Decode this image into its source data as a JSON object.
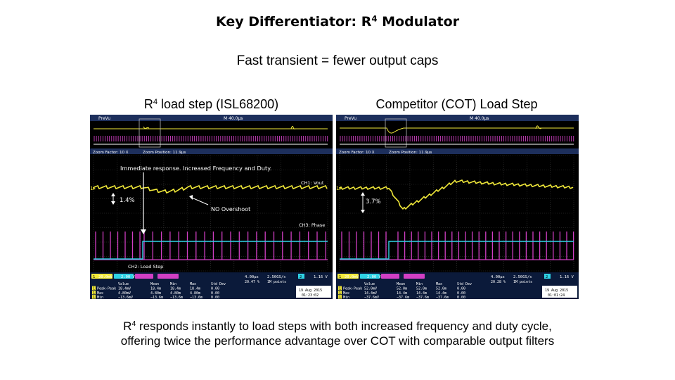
{
  "slide": {
    "title_main": "Key Differentiator: R",
    "title_sup": "4",
    "title_rest": " Modulator",
    "subtitle": "Fast transient = fewer output caps",
    "caption_line1_a": "R",
    "caption_line1_sup": "4",
    "caption_line1_b": " responds instantly to load steps with both increased frequency and duty cycle,",
    "caption_line2": "offering twice the performance advantage over COT with comparable output filters"
  },
  "left_panel": {
    "label_a": "R",
    "label_sup": "4",
    "label_b": " load step (ISL68200)",
    "top_bar_left": "PreVu",
    "top_bar_mid": "M 40.0µs",
    "zoom_factor": "Zoom Factor: 10 X",
    "zoom_position": "Zoom Position: 11.9µs",
    "annotation_top": "Immediate response. Increased Frequency and Duty.",
    "annotation_pct": "1.4%",
    "annotation_overshoot": "NO Overshoot",
    "ch1_label": "CH1: Vout",
    "ch3_label": "CH3: Phase",
    "ch2_label": "CH2: Load Step",
    "ch1_scale": "20.0mV",
    "ch2_scale": "2.00 V",
    "timebase": "4.00µs",
    "timebase_pct": "20.47 %",
    "sample_rate": "2.50GS/s",
    "record": "1M points",
    "trig_ch": "2",
    "trig_level": "1.16 V",
    "meas_headers": [
      "Value",
      "Mean",
      "Min",
      "Max",
      "Std Dev"
    ],
    "meas_rows": [
      {
        "n": "1",
        "name": "Peak-Peak",
        "vals": [
          "18.4mV",
          "18.4m",
          "18.4m",
          "18.4m",
          "0.00"
        ]
      },
      {
        "n": "1",
        "name": "Max",
        "vals": [
          "4.80mV",
          "4.80m",
          "4.80m",
          "4.80m",
          "0.00"
        ]
      },
      {
        "n": "1",
        "name": "Min",
        "vals": "−13.6mV|−13.6m|−13.6m|−13.6m|0.00"
      }
    ],
    "date": "19 Aug 2015",
    "time": "01:23:02"
  },
  "right_panel": {
    "label": "Competitor (COT) Load Step",
    "top_bar_left": "PreVu",
    "top_bar_mid": "M 40.0µs",
    "zoom_factor": "Zoom Factor: 10 X",
    "zoom_position": "Zoom Position: 11.9µs",
    "annotation_pct": "3.7%",
    "ch1_scale": "20.0mV",
    "ch2_scale": "2.00 V",
    "timebase": "4.00µs",
    "timebase_pct": "20.28 %",
    "sample_rate": "2.50GS/s",
    "record": "1M points",
    "trig_ch": "2",
    "trig_level": "1.16 V",
    "meas_headers": [
      "Value",
      "Mean",
      "Min",
      "Max",
      "Std Dev"
    ],
    "meas_rows": [
      {
        "n": "1",
        "name": "Peak-Peak",
        "vals": [
          "52.0mV",
          "52.0m",
          "52.0m",
          "52.0m",
          "0.00"
        ]
      },
      {
        "n": "1",
        "name": "Max",
        "vals": [
          "14.4mV",
          "14.4m",
          "14.4m",
          "14.4m",
          "0.00"
        ]
      },
      {
        "n": "1",
        "name": "Min",
        "vals": [
          "−37.6mV",
          "−37.6m",
          "−37.6m",
          "−37.6m",
          "0.00"
        ]
      }
    ],
    "date": "19 Aug 2015",
    "time": "01:01:24"
  },
  "colors": {
    "ch1": "#f2ea3a",
    "ch2": "#2fd3e6",
    "ch3": "#d13fc4",
    "grid": "#3a3a3a",
    "status_bg": "#0b1a3a"
  }
}
